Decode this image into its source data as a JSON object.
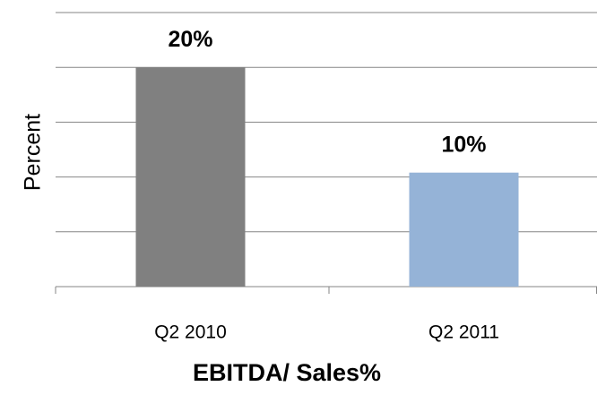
{
  "chart_data": {
    "type": "bar",
    "xlabel": "EBITDA/ Sales%",
    "ylabel": "Percent",
    "categories": [
      "Q2 2010",
      "Q2 2011"
    ],
    "values": [
      20,
      10.4
    ],
    "value_labels": [
      "20%",
      "10%"
    ],
    "colors": [
      "#808080",
      "#95b3d7"
    ],
    "ylim": [
      0,
      25
    ],
    "yticks": [
      0,
      5,
      10,
      15,
      20,
      25
    ],
    "grid": true
  }
}
